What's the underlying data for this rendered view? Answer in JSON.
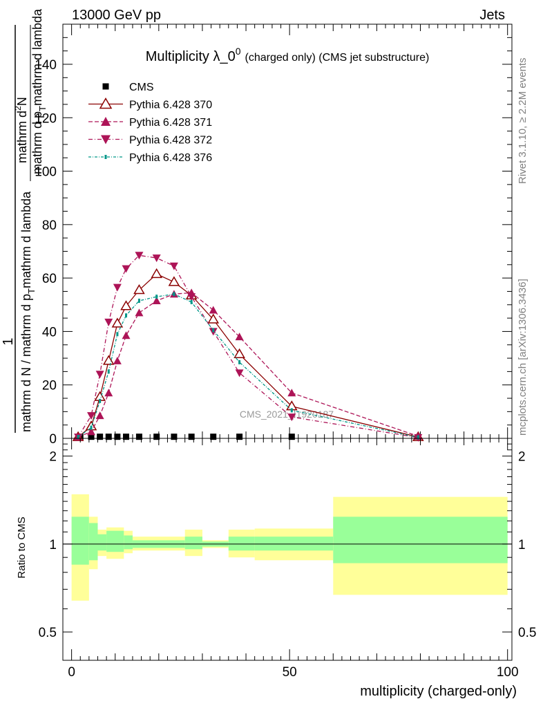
{
  "header": {
    "left": "13000 GeV pp",
    "right": "Jets"
  },
  "side_labels": {
    "rivet": "Rivet 3.1.10, ≥ 2.2M events",
    "mcplots": "mcplots.cern.ch [arXiv:1306.3436]"
  },
  "chart_data": [
    {
      "type": "line",
      "title": "Multiplicity λ_0",
      "title_superscript": "0",
      "title_suffix": "(charged only) (CMS jet substructure)",
      "watermark": "CMS_2021_I1920187",
      "ylabel": {
        "numerator": "1",
        "denominator": "mathrm d N / mathrm d p",
        "denominator_sub": "T",
        "denominator_tail": "mathrm d lambda",
        "deriv_numerator": "mathrm d",
        "deriv_numerator_sup": "2",
        "deriv_numerator_tail": "N",
        "deriv_denominator": "mathrm d p",
        "deriv_denominator_sub": "T",
        "deriv_denominator_tail": "mathrm d lambda"
      },
      "xlim": [
        -2,
        101
      ],
      "ylim": [
        0,
        155
      ],
      "yticks": [
        "0",
        "20",
        "40",
        "60",
        "80",
        "100",
        "120",
        "140"
      ],
      "legend_position": "top-left",
      "series": [
        {
          "name": "CMS",
          "color": "#000000",
          "marker": "square",
          "x": [
            2,
            4.5,
            6.5,
            8.5,
            10.5,
            12.5,
            15.5,
            19.5,
            23.5,
            27.5,
            32.5,
            38.5,
            50.5
          ],
          "y": [
            0.5,
            0.6,
            0.6,
            0.6,
            0.6,
            0.6,
            0.6,
            0.6,
            0.6,
            0.6,
            0.6,
            0.6,
            0.6
          ]
        },
        {
          "name": "Pythia 6.428 370",
          "color": "#8b0000",
          "marker": "triangle-open",
          "dash": "",
          "x": [
            1.5,
            4.5,
            6.5,
            8.5,
            10.5,
            12.5,
            15.5,
            19.5,
            23.5,
            27.5,
            32.5,
            38.5,
            50.5,
            79.5
          ],
          "y": [
            0.5,
            4.5,
            15.5,
            29,
            43,
            49.5,
            55.5,
            61.5,
            58.5,
            53.5,
            44.5,
            31.5,
            12,
            0.5
          ]
        },
        {
          "name": "Pythia 6.428 371",
          "color": "#ad1457",
          "marker": "triangle-up",
          "dash": "6,3",
          "x": [
            1.5,
            4.5,
            6.5,
            8.5,
            10.5,
            12.5,
            15.5,
            19.5,
            23.5,
            27.5,
            32.5,
            38.5,
            50.5,
            79.5
          ],
          "y": [
            0.5,
            2.5,
            8.5,
            17,
            29,
            38.5,
            47,
            51.5,
            54,
            54.5,
            48,
            38,
            17,
            0.8
          ]
        },
        {
          "name": "Pythia 6.428 372",
          "color": "#ad1457",
          "marker": "triangle-down",
          "dash": "6,3,1,3",
          "x": [
            1.5,
            4.5,
            6.5,
            8.5,
            10.5,
            12.5,
            15.5,
            19.5,
            23.5,
            27.5,
            32.5,
            38.5,
            50.5,
            79.5
          ],
          "y": [
            0.5,
            8.5,
            24,
            43.5,
            56.5,
            63.5,
            68.5,
            67.5,
            64.5,
            53,
            40,
            24.5,
            8,
            0.3
          ]
        },
        {
          "name": "Pythia 6.428 376",
          "color": "#009688",
          "marker": "dot",
          "dash": "4,2,1,2",
          "x": [
            1.5,
            4.5,
            6.5,
            8.5,
            10.5,
            12.5,
            15.5,
            19.5,
            23.5,
            27.5,
            32.5,
            38.5,
            50.5,
            79.5
          ],
          "y": [
            0.5,
            4,
            14,
            25,
            39,
            46,
            51.5,
            53,
            54,
            51,
            40.5,
            28.5,
            10.5,
            0.4
          ]
        }
      ]
    },
    {
      "type": "area",
      "ylabel": "Ratio to CMS",
      "xlabel": "multiplicity (charged-only)",
      "xlim": [
        -2,
        101
      ],
      "xticks": [
        "0",
        "50",
        "100"
      ],
      "ylim_log": [
        0.4,
        2.3
      ],
      "yticks": [
        "0.5",
        "1",
        "2"
      ],
      "reference_line": 1,
      "band_colors": {
        "inner": "#99ff99",
        "outer": "#ffff99"
      },
      "bins": [
        {
          "x0": 0,
          "x1": 4,
          "inner": [
            0.85,
            1.24
          ],
          "outer": [
            0.64,
            1.48
          ]
        },
        {
          "x0": 4,
          "x1": 6,
          "inner": [
            0.88,
            1.18
          ],
          "outer": [
            0.82,
            1.24
          ]
        },
        {
          "x0": 6,
          "x1": 8,
          "inner": [
            0.95,
            1.08
          ],
          "outer": [
            0.91,
            1.12
          ]
        },
        {
          "x0": 8,
          "x1": 12,
          "inner": [
            0.94,
            1.11
          ],
          "outer": [
            0.89,
            1.14
          ]
        },
        {
          "x0": 12,
          "x1": 14,
          "inner": [
            0.96,
            1.07
          ],
          "outer": [
            0.93,
            1.11
          ]
        },
        {
          "x0": 14,
          "x1": 26,
          "inner": [
            0.97,
            1.03
          ],
          "outer": [
            0.95,
            1.06
          ]
        },
        {
          "x0": 26,
          "x1": 30,
          "inner": [
            0.96,
            1.06
          ],
          "outer": [
            0.91,
            1.12
          ]
        },
        {
          "x0": 30,
          "x1": 36,
          "inner": [
            0.98,
            1.02
          ],
          "outer": [
            0.97,
            1.03
          ]
        },
        {
          "x0": 36,
          "x1": 42,
          "inner": [
            0.95,
            1.06
          ],
          "outer": [
            0.9,
            1.12
          ]
        },
        {
          "x0": 42,
          "x1": 60,
          "inner": [
            0.95,
            1.06
          ],
          "outer": [
            0.88,
            1.13
          ]
        },
        {
          "x0": 60,
          "x1": 100,
          "inner": [
            0.86,
            1.24
          ],
          "outer": [
            0.67,
            1.45
          ]
        }
      ]
    }
  ]
}
